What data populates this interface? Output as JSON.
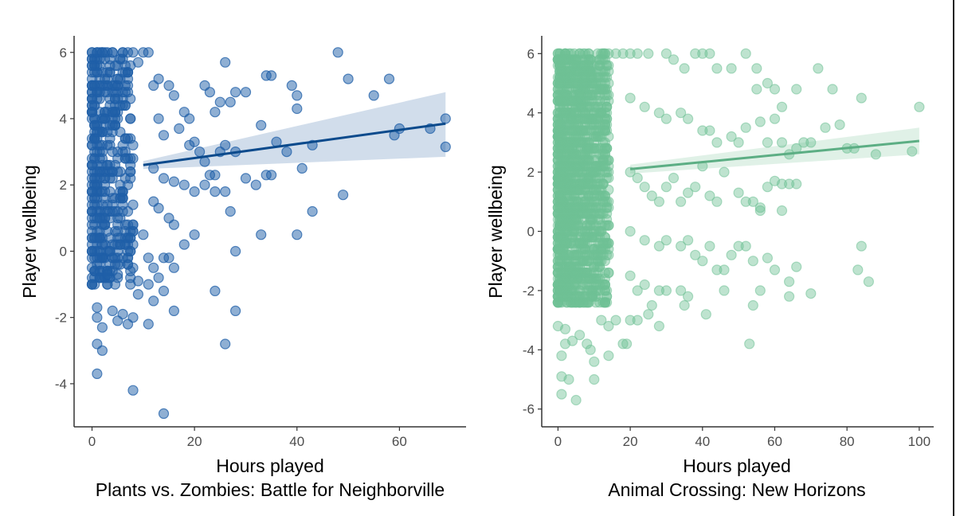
{
  "chart_data": [
    {
      "type": "scatter",
      "title": "Plants vs. Zombies: Battle for Neighborville",
      "xlabel": "Hours played",
      "ylabel": "Player wellbeing",
      "xlim": [
        -3.5,
        73
      ],
      "ylim": [
        -5.3,
        6.5
      ],
      "xticks": [
        0,
        20,
        40,
        60
      ],
      "yticks": [
        -4,
        -2,
        0,
        2,
        4,
        6
      ],
      "xtick_labels": [
        "0",
        "20",
        "40",
        "60"
      ],
      "ytick_labels": [
        "-4",
        "-2",
        "0",
        "2",
        "4",
        "6"
      ],
      "grid": false,
      "point_color": "#1f5fa8",
      "line_color": "#0b4a8c",
      "band_color": "#c9d7e8",
      "regression": {
        "x": [
          10,
          69
        ],
        "y": [
          2.6,
          3.85
        ],
        "band_upper": [
          2.72,
          4.8
        ],
        "band_lower": [
          2.48,
          2.85
        ]
      },
      "dense_cluster": {
        "x_range": [
          0,
          8
        ],
        "y_range": [
          -1,
          6
        ],
        "count": 420,
        "seed": 7
      },
      "points": [
        [
          0,
          6
        ],
        [
          1,
          6
        ],
        [
          2,
          6
        ],
        [
          3,
          6
        ],
        [
          4,
          6
        ],
        [
          6,
          6
        ],
        [
          7,
          6
        ],
        [
          8,
          6
        ],
        [
          10,
          6
        ],
        [
          11,
          6
        ],
        [
          9,
          5.7
        ],
        [
          12,
          5
        ],
        [
          13,
          5.2
        ],
        [
          15,
          5
        ],
        [
          16,
          4.7
        ],
        [
          18,
          4.2
        ],
        [
          19,
          4
        ],
        [
          20,
          3.3
        ],
        [
          22,
          5
        ],
        [
          23,
          4.8
        ],
        [
          24,
          4.2
        ],
        [
          25,
          4.5
        ],
        [
          26,
          5.7
        ],
        [
          27,
          4.5
        ],
        [
          28,
          4.8
        ],
        [
          30,
          4.8
        ],
        [
          33,
          3.8
        ],
        [
          34,
          5.3
        ],
        [
          35,
          5.3
        ],
        [
          39,
          5
        ],
        [
          40,
          4.7
        ],
        [
          40,
          4.3
        ],
        [
          48,
          6
        ],
        [
          50,
          5.2
        ],
        [
          55,
          4.7
        ],
        [
          58,
          5.2
        ],
        [
          13,
          4
        ],
        [
          14,
          3.5
        ],
        [
          17,
          3.7
        ],
        [
          19,
          3.2
        ],
        [
          21,
          3
        ],
        [
          22,
          2.7
        ],
        [
          23,
          2.3
        ],
        [
          24,
          2.3
        ],
        [
          25,
          3
        ],
        [
          26,
          3.2
        ],
        [
          28,
          3
        ],
        [
          30,
          2.2
        ],
        [
          32,
          2
        ],
        [
          34,
          2.3
        ],
        [
          35,
          2.3
        ],
        [
          36,
          3.3
        ],
        [
          38,
          3
        ],
        [
          41,
          2.5
        ],
        [
          43,
          3.2
        ],
        [
          12,
          2.5
        ],
        [
          14,
          2.2
        ],
        [
          16,
          2.1
        ],
        [
          18,
          2
        ],
        [
          20,
          1.8
        ],
        [
          22,
          2
        ],
        [
          24,
          1.8
        ],
        [
          26,
          1.8
        ],
        [
          27,
          1.2
        ],
        [
          12,
          1.5
        ],
        [
          13,
          1.3
        ],
        [
          15,
          1.0
        ],
        [
          16,
          0.8
        ],
        [
          18,
          0.2
        ],
        [
          20,
          0.5
        ],
        [
          10,
          0.5
        ],
        [
          11,
          -0.2
        ],
        [
          12,
          -0.5
        ],
        [
          13,
          -0.8
        ],
        [
          14,
          -0.2
        ],
        [
          15,
          -0.2
        ],
        [
          16,
          -0.5
        ],
        [
          28,
          0
        ],
        [
          33,
          0.5
        ],
        [
          40,
          0.5
        ],
        [
          43,
          1.2
        ],
        [
          49,
          1.7
        ],
        [
          60,
          3.7
        ],
        [
          69,
          3.15
        ],
        [
          69,
          4
        ],
        [
          66,
          3.7
        ],
        [
          59,
          3.5
        ],
        [
          9,
          -1.3
        ],
        [
          11,
          -1
        ],
        [
          12,
          -1.5
        ],
        [
          14,
          -1.2
        ],
        [
          16,
          -1.8
        ],
        [
          8,
          -2
        ],
        [
          7,
          -2.2
        ],
        [
          6,
          -1.9
        ],
        [
          4,
          -1.8
        ],
        [
          5,
          -2.1
        ],
        [
          11,
          -2.2
        ],
        [
          24,
          -1.2
        ],
        [
          28,
          -1.8
        ],
        [
          26,
          -2.8
        ],
        [
          1,
          -1.7
        ],
        [
          1,
          -2
        ],
        [
          2,
          -2.3
        ],
        [
          1,
          -2.8
        ],
        [
          2,
          -3
        ],
        [
          1,
          -3.7
        ],
        [
          8,
          -4.2
        ],
        [
          14,
          -4.9
        ],
        [
          0,
          -1
        ],
        [
          0,
          -0.5
        ],
        [
          3,
          -0.7
        ],
        [
          5,
          -0.7
        ],
        [
          8,
          -0.5
        ],
        [
          9,
          -0.9
        ]
      ]
    },
    {
      "type": "scatter",
      "title": "Animal Crossing: New Horizons",
      "xlabel": "Hours played",
      "ylabel": "Player wellbeing",
      "xlim": [
        -4.5,
        104
      ],
      "ylim": [
        -6.6,
        6.6
      ],
      "xticks": [
        0,
        20,
        40,
        60,
        80,
        100
      ],
      "yticks": [
        -6,
        -4,
        -2,
        0,
        2,
        4,
        6
      ],
      "xtick_labels": [
        "0",
        "20",
        "40",
        "60",
        "80",
        "100"
      ],
      "ytick_labels": [
        "-6",
        "-4",
        "-2",
        "0",
        "2",
        "4",
        "6"
      ],
      "grid": false,
      "point_color": "#6fc195",
      "line_color": "#5cae84",
      "band_color": "#dbeee3",
      "regression": {
        "x": [
          20,
          100
        ],
        "y": [
          2.1,
          3.05
        ],
        "band_upper": [
          2.25,
          3.5
        ],
        "band_lower": [
          1.95,
          2.6
        ]
      },
      "dense_cluster": {
        "x_range": [
          0,
          14
        ],
        "y_range": [
          -2.5,
          6
        ],
        "count": 1500,
        "seed": 11
      },
      "points": [
        [
          16,
          6
        ],
        [
          18,
          6
        ],
        [
          20,
          6
        ],
        [
          22,
          6
        ],
        [
          25,
          6
        ],
        [
          30,
          6
        ],
        [
          32,
          5.8
        ],
        [
          35,
          5.5
        ],
        [
          38,
          6
        ],
        [
          40,
          6
        ],
        [
          42,
          6
        ],
        [
          44,
          5.5
        ],
        [
          48,
          5.5
        ],
        [
          52,
          6
        ],
        [
          55,
          5.5
        ],
        [
          58,
          5
        ],
        [
          55,
          4.8
        ],
        [
          60,
          4.8
        ],
        [
          62,
          4.2
        ],
        [
          66,
          4.8
        ],
        [
          72,
          5.5
        ],
        [
          76,
          4.8
        ],
        [
          78,
          3.6
        ],
        [
          84,
          4.5
        ],
        [
          100,
          4.2
        ],
        [
          20,
          4.5
        ],
        [
          24,
          4.2
        ],
        [
          28,
          4
        ],
        [
          30,
          3.8
        ],
        [
          34,
          4
        ],
        [
          36,
          3.8
        ],
        [
          40,
          3.4
        ],
        [
          42,
          3.4
        ],
        [
          44,
          3
        ],
        [
          48,
          3.2
        ],
        [
          50,
          3
        ],
        [
          52,
          3.5
        ],
        [
          56,
          3.7
        ],
        [
          58,
          3
        ],
        [
          60,
          3.8
        ],
        [
          62,
          3
        ],
        [
          64,
          2.6
        ],
        [
          66,
          2.8
        ],
        [
          68,
          3
        ],
        [
          70,
          3
        ],
        [
          74,
          3.5
        ],
        [
          80,
          2.8
        ],
        [
          82,
          2.8
        ],
        [
          88,
          2.6
        ],
        [
          98,
          2.7
        ],
        [
          20,
          2
        ],
        [
          22,
          1.8
        ],
        [
          24,
          1.5
        ],
        [
          26,
          1.2
        ],
        [
          28,
          1
        ],
        [
          30,
          1.5
        ],
        [
          32,
          1.8
        ],
        [
          34,
          1
        ],
        [
          36,
          1.3
        ],
        [
          38,
          1.5
        ],
        [
          40,
          2.2
        ],
        [
          42,
          1.2
        ],
        [
          44,
          1
        ],
        [
          46,
          2
        ],
        [
          50,
          1.3
        ],
        [
          52,
          1
        ],
        [
          54,
          1
        ],
        [
          56,
          0.7
        ],
        [
          58,
          1.5
        ],
        [
          60,
          1.7
        ],
        [
          62,
          1.6
        ],
        [
          64,
          1.6
        ],
        [
          66,
          1.6
        ],
        [
          56,
          0.8
        ],
        [
          62,
          0.7
        ],
        [
          20,
          0
        ],
        [
          24,
          -0.3
        ],
        [
          28,
          -0.5
        ],
        [
          30,
          -0.3
        ],
        [
          34,
          -0.5
        ],
        [
          36,
          -0.3
        ],
        [
          38,
          -0.8
        ],
        [
          40,
          -1
        ],
        [
          42,
          -0.5
        ],
        [
          44,
          -1.3
        ],
        [
          46,
          -1.3
        ],
        [
          48,
          -0.8
        ],
        [
          50,
          -0.5
        ],
        [
          52,
          -0.5
        ],
        [
          54,
          -1
        ],
        [
          58,
          -0.9
        ],
        [
          60,
          -1.3
        ],
        [
          64,
          -1.7
        ],
        [
          66,
          -1.2
        ],
        [
          70,
          -2.1
        ],
        [
          84,
          -0.5
        ],
        [
          86,
          -1.7
        ],
        [
          83,
          -1.3
        ],
        [
          64,
          -2.2
        ],
        [
          56,
          -2
        ],
        [
          20,
          -1.5
        ],
        [
          22,
          -2
        ],
        [
          24,
          -1.8
        ],
        [
          26,
          -2.5
        ],
        [
          28,
          -2
        ],
        [
          30,
          -2
        ],
        [
          34,
          -2
        ],
        [
          35,
          -2.5
        ],
        [
          36,
          -2.2
        ],
        [
          41,
          -2.8
        ],
        [
          54,
          -2.5
        ],
        [
          53,
          -3.8
        ],
        [
          12,
          -3
        ],
        [
          14,
          -3.2
        ],
        [
          16,
          -3
        ],
        [
          18,
          -3.8
        ],
        [
          19,
          -3.8
        ],
        [
          8,
          -3.8
        ],
        [
          9,
          -4
        ],
        [
          10,
          -4.4
        ],
        [
          14,
          -4.2
        ],
        [
          1,
          -4.2
        ],
        [
          1,
          -4.9
        ],
        [
          3,
          -5
        ],
        [
          10,
          -5
        ],
        [
          1,
          -5.5
        ],
        [
          5,
          -5.7
        ],
        [
          2,
          -3.8
        ],
        [
          4,
          -3.7
        ],
        [
          6,
          -3.5
        ],
        [
          0,
          -3.2
        ],
        [
          2,
          -3.3
        ],
        [
          20,
          -3
        ],
        [
          22,
          -3
        ],
        [
          25,
          -2.8
        ],
        [
          28,
          -3.2
        ],
        [
          46,
          -2
        ]
      ]
    }
  ]
}
